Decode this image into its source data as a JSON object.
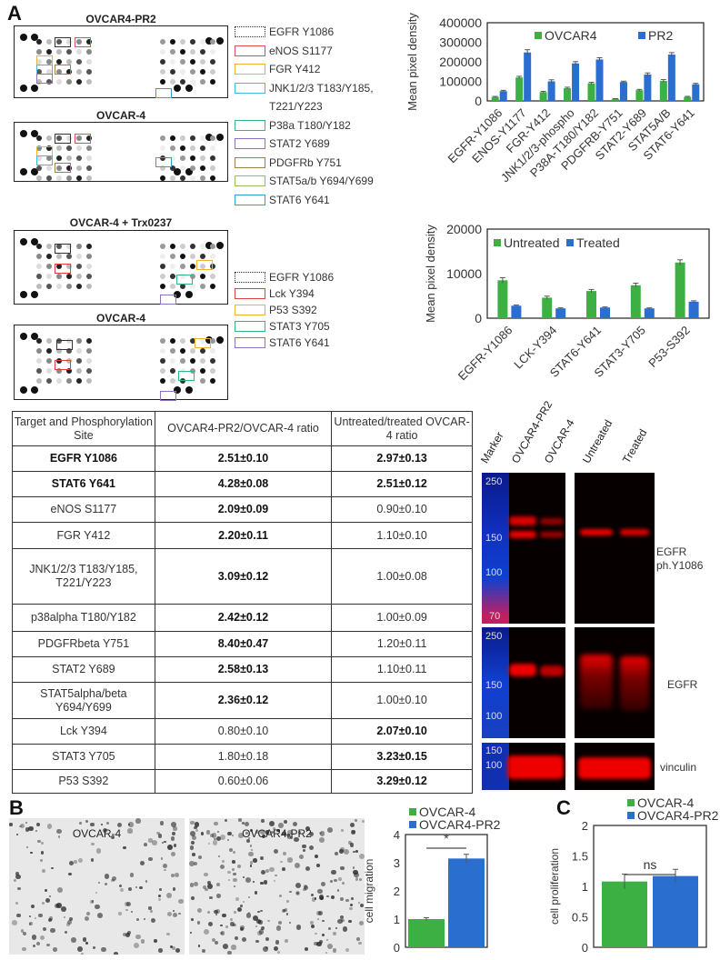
{
  "panels": {
    "a": "A",
    "b": "B",
    "c": "C"
  },
  "arrays": {
    "top_titles": [
      "OVCAR4-PR2",
      "OVCAR-4"
    ],
    "bottom_titles": [
      "OVCAR-4  + Trx0237",
      "OVCAR-4"
    ]
  },
  "legend_top": [
    {
      "label": "EGFR Y1086",
      "color": "#333333"
    },
    {
      "label": "eNOS S1177",
      "color": "#e05050"
    },
    {
      "label": "FGR Y412",
      "color": "#f0b030"
    },
    {
      "label": "JNK1/2/3 T183/Y185,",
      "color": "#40b8e0"
    },
    {
      "label": "T221/Y223",
      "color": ""
    },
    {
      "label": "P38a T180/Y182",
      "color": "#30b880"
    },
    {
      "label": "STAT2 Y689",
      "color": "#9070c0"
    },
    {
      "label": "PDGFRb Y751",
      "color": "#a08040"
    },
    {
      "label": "STAT5a/b Y694/Y699",
      "color": "#90c060"
    },
    {
      "label": "STAT6 Y641",
      "color": "#30a0d0"
    }
  ],
  "legend_bottom": [
    {
      "label": "EGFR Y1086",
      "color": "#333333"
    },
    {
      "label": "Lck Y394",
      "color": "#e04040"
    },
    {
      "label": "P53 S392",
      "color": "#f0b030"
    },
    {
      "label": "STAT3 Y705",
      "color": "#30b880"
    },
    {
      "label": "STAT6 Y641",
      "color": "#9070c0"
    }
  ],
  "table": {
    "headers": [
      "Target and Phosphorylation Site",
      "OVCAR4-PR2/OVCAR-4 ratio",
      "Untreated/treated OVCAR-4 ratio"
    ],
    "rows": [
      {
        "cells": [
          "EGFR  Y1086",
          "2.51±0.10",
          "2.97±0.13"
        ],
        "bold": [
          true,
          true,
          true
        ]
      },
      {
        "cells": [
          "STAT6  Y641",
          "4.28±0.08",
          "2.51±0.12"
        ],
        "bold": [
          true,
          true,
          true
        ]
      },
      {
        "cells": [
          "eNOS  S1177",
          "2.09±0.09",
          "0.90±0.10"
        ],
        "bold": [
          false,
          true,
          false
        ]
      },
      {
        "cells": [
          "FGR  Y412",
          "2.20±0.11",
          "1.10±0.10"
        ],
        "bold": [
          false,
          true,
          false
        ]
      },
      {
        "cells": [
          "JNK1/2/3 T183/Y185, T221/Y223",
          "3.09±0.12",
          "1.00±0.08"
        ],
        "bold": [
          false,
          true,
          false
        ]
      },
      {
        "cells": [
          "p38alpha  T180/Y182",
          "2.42±0.12",
          "1.00±0.09"
        ],
        "bold": [
          false,
          true,
          false
        ]
      },
      {
        "cells": [
          "PDGFRbeta  Y751",
          "8.40±0.47",
          "1.20±0.11"
        ],
        "bold": [
          false,
          true,
          false
        ]
      },
      {
        "cells": [
          "STAT2  Y689",
          "2.58±0.13",
          "1.10±0.11"
        ],
        "bold": [
          false,
          true,
          false
        ]
      },
      {
        "cells": [
          "STAT5alpha/beta Y694/Y699",
          "2.36±0.12",
          "1.00±0.10"
        ],
        "bold": [
          false,
          true,
          false
        ]
      },
      {
        "cells": [
          "Lck Y394",
          "0.80±0.10",
          "2.07±0.10"
        ],
        "bold": [
          false,
          false,
          true
        ]
      },
      {
        "cells": [
          "STAT3  Y705",
          "1.80±0.18",
          "3.23±0.15"
        ],
        "bold": [
          false,
          false,
          true
        ]
      },
      {
        "cells": [
          "P53 S392",
          "0.60±0.06",
          "3.29±0.12"
        ],
        "bold": [
          false,
          false,
          true
        ]
      }
    ]
  },
  "western": {
    "lanes": [
      "Marker",
      "OVCAR4-PR2",
      "OVCAR-4",
      "Untreated",
      "Treated"
    ],
    "panel1": {
      "markers": [
        "250",
        "150",
        "100",
        "70"
      ],
      "label": [
        "EGFR",
        "ph.Y1086"
      ]
    },
    "panel2": {
      "markers": [
        "250",
        "150",
        "100"
      ],
      "label": [
        "EGFR"
      ]
    },
    "panel3": {
      "markers": [
        "150",
        "100"
      ],
      "label": [
        "vinculin"
      ]
    }
  },
  "micrographs": [
    "OVCAR-4",
    "OVCAR4-PR2"
  ],
  "colors": {
    "green": "#3cb043",
    "blue": "#2a6fd0"
  },
  "chart_data": [
    {
      "type": "bar",
      "ylabel": "Mean pixel density",
      "ylim": [
        0,
        400000
      ],
      "yticks": [
        "0",
        "100000",
        "200000",
        "300000",
        "400000"
      ],
      "legend": "top",
      "categories": [
        "EGFR-Y1086",
        "ENOS-Y1177",
        "FGR-Y412",
        "JNK1/2/3-phospho",
        "P38A-T180/Y182",
        "PDGFRB-Y751",
        "STAT2-Y689",
        "STAT5A/B",
        "STAT6-Y641"
      ],
      "series": [
        {
          "name": "OVCAR4",
          "color": "#3cb043",
          "values": [
            20000,
            120000,
            45000,
            65000,
            90000,
            10000,
            55000,
            102000,
            20000
          ],
          "errors": [
            3000,
            6000,
            4000,
            5000,
            5000,
            2000,
            4000,
            7000,
            3000
          ]
        },
        {
          "name": "PR2",
          "color": "#2a6fd0",
          "values": [
            50000,
            248000,
            100000,
            192000,
            212000,
            97000,
            135000,
            237000,
            85000
          ],
          "errors": [
            4000,
            14000,
            8000,
            9000,
            9000,
            4000,
            8000,
            10000,
            5000
          ]
        }
      ]
    },
    {
      "type": "bar",
      "ylabel": "Mean pixel density",
      "ylim": [
        0,
        20000
      ],
      "yticks": [
        "0",
        "10000",
        "20000"
      ],
      "legend": "top-left",
      "categories": [
        "EGFR-Y1086",
        "LCK-Y394",
        "STAT6-Y641",
        "STAT3-Y705",
        "P53-S392"
      ],
      "series": [
        {
          "name": "Untreated",
          "color": "#3cb043",
          "values": [
            8500,
            4600,
            6100,
            7400,
            12500
          ],
          "errors": [
            600,
            350,
            350,
            450,
            600
          ]
        },
        {
          "name": "Treated",
          "color": "#2a6fd0",
          "values": [
            2800,
            2200,
            2400,
            2200,
            3700
          ],
          "errors": [
            150,
            120,
            120,
            120,
            200
          ]
        }
      ]
    },
    {
      "type": "bar",
      "ylabel": "cell migration",
      "ylim": [
        0,
        4
      ],
      "yticks": [
        "0",
        "1",
        "2",
        "3",
        "4"
      ],
      "legend": "top",
      "categories": [
        ""
      ],
      "series": [
        {
          "name": "OVCAR-4",
          "color": "#3cb043",
          "values": [
            1.0
          ],
          "errors": [
            0.05
          ]
        },
        {
          "name": "OVCAR4-PR2",
          "color": "#2a6fd0",
          "values": [
            3.15
          ],
          "errors": [
            0.15
          ]
        }
      ],
      "annotation": "*"
    },
    {
      "type": "bar",
      "ylabel": "cell proliferation",
      "ylim": [
        0,
        2
      ],
      "yticks": [
        "0",
        "0.5",
        "1",
        "1.5",
        "2"
      ],
      "legend": "top",
      "categories": [
        ""
      ],
      "series": [
        {
          "name": "OVCAR-4",
          "color": "#3cb043",
          "values": [
            1.08
          ],
          "errors": [
            0.12
          ]
        },
        {
          "name": "OVCAR4-PR2",
          "color": "#2a6fd0",
          "values": [
            1.17
          ],
          "errors": [
            0.11
          ]
        }
      ],
      "annotation": "ns"
    }
  ]
}
